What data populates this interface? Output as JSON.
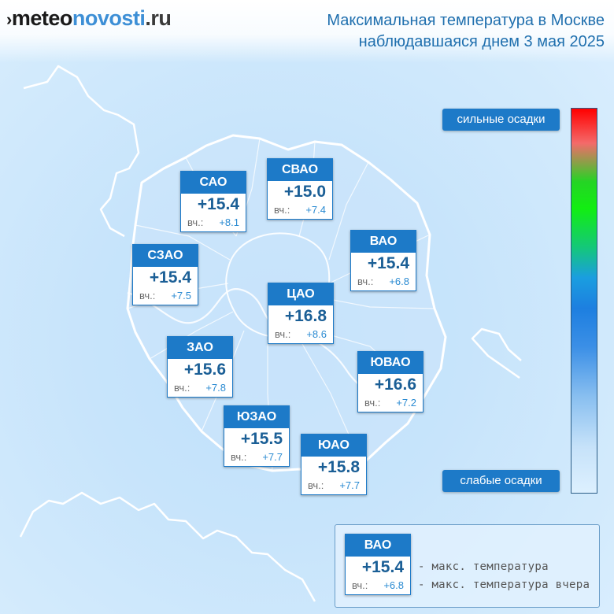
{
  "logo": {
    "mark": "›",
    "part1": "meteo",
    "part2": "novosti",
    "part3": ".ru"
  },
  "header": {
    "line1": "Максимальная температура в Москве",
    "line2": "наблюдавшаяся днем 3 мая 2025"
  },
  "districts": [
    {
      "name": "САО",
      "temp": "+15.4",
      "yesterday_label": "вч.:",
      "yesterday": "+8.1"
    },
    {
      "name": "СВАО",
      "temp": "+15.0",
      "yesterday_label": "вч.:",
      "yesterday": "+7.4"
    },
    {
      "name": "ВАО",
      "temp": "+15.4",
      "yesterday_label": "вч.:",
      "yesterday": "+6.8"
    },
    {
      "name": "СЗАО",
      "temp": "+15.4",
      "yesterday_label": "вч.:",
      "yesterday": "+7.5"
    },
    {
      "name": "ЦАО",
      "temp": "+16.8",
      "yesterday_label": "вч.:",
      "yesterday": "+8.6"
    },
    {
      "name": "ЗАО",
      "temp": "+15.6",
      "yesterday_label": "вч.:",
      "yesterday": "+7.8"
    },
    {
      "name": "ЮВАО",
      "temp": "+16.6",
      "yesterday_label": "вч.:",
      "yesterday": "+7.2"
    },
    {
      "name": "ЮЗАО",
      "temp": "+15.5",
      "yesterday_label": "вч.:",
      "yesterday": "+7.7"
    },
    {
      "name": "ЮАО",
      "temp": "+15.8",
      "yesterday_label": "вч.:",
      "yesterday": "+7.7"
    }
  ],
  "scale": {
    "top_label": "сильные осадки",
    "bottom_label": "слабые осадки",
    "colors": [
      "#ff0000",
      "#25d425",
      "#1d7fe0",
      "#ddf0ff"
    ]
  },
  "legend": {
    "sample": {
      "name": "ВАО",
      "temp": "+15.4",
      "yesterday_label": "вч.:",
      "yesterday": "+6.8"
    },
    "line1": "- макс. температура",
    "line2": "- макс. температура вчера"
  },
  "colors": {
    "accent": "#1d7ac8",
    "temp_text": "#1b5f96",
    "header_text": "#1f6fae",
    "yesterday_text": "#2b8bd2"
  }
}
